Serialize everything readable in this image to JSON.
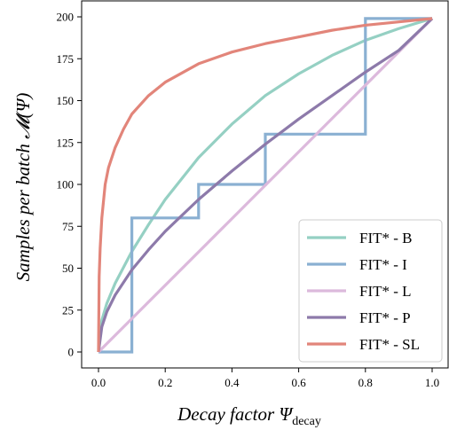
{
  "chart_data": {
    "type": "line",
    "title": "",
    "xlabel": "Decay factor Ψ",
    "xlabel_sub": "decay",
    "ylabel": "Samples per batch 𝓜(Ψ)",
    "xlim": [
      0,
      1
    ],
    "ylim": [
      0,
      200
    ],
    "xticks": [
      "0.0",
      "0.2",
      "0.4",
      "0.6",
      "0.8",
      "1.0"
    ],
    "yticks": [
      "0",
      "25",
      "50",
      "75",
      "100",
      "125",
      "150",
      "175",
      "200"
    ],
    "grid": false,
    "legend_position": "bottom-right",
    "series": [
      {
        "name": "FIT* - B",
        "color": "#95d0c3",
        "x": [
          0,
          0.01,
          0.025,
          0.05,
          0.1,
          0.15,
          0.2,
          0.3,
          0.4,
          0.5,
          0.6,
          0.7,
          0.8,
          0.9,
          1.0
        ],
        "y": [
          0,
          19,
          29,
          41,
          60,
          76,
          91,
          116,
          136,
          153,
          166,
          177,
          186,
          193,
          199
        ]
      },
      {
        "name": "FIT* - I",
        "color": "#8ab0d2",
        "x": [
          0,
          0.1,
          0.1,
          0.3,
          0.3,
          0.5,
          0.5,
          0.8,
          0.8,
          1.0
        ],
        "y": [
          0,
          0,
          80,
          80,
          100,
          100,
          130,
          130,
          199,
          199
        ]
      },
      {
        "name": "FIT* - L",
        "color": "#dcb9dc",
        "x": [
          0,
          1
        ],
        "y": [
          0,
          199
        ]
      },
      {
        "name": "FIT* - P",
        "color": "#8d7aaa",
        "x": [
          0,
          0.01,
          0.025,
          0.05,
          0.1,
          0.15,
          0.2,
          0.3,
          0.4,
          0.5,
          0.6,
          0.7,
          0.8,
          0.9,
          1.0
        ],
        "y": [
          0,
          15,
          24,
          34,
          49,
          61,
          72,
          91,
          108,
          124,
          139,
          153,
          167,
          180,
          199
        ]
      },
      {
        "name": "FIT* - SL",
        "color": "#e2857a",
        "x": [
          0,
          0.002,
          0.005,
          0.01,
          0.02,
          0.03,
          0.05,
          0.075,
          0.1,
          0.15,
          0.2,
          0.3,
          0.4,
          0.5,
          0.6,
          0.7,
          0.8,
          0.9,
          1.0
        ],
        "y": [
          0,
          45,
          62,
          80,
          100,
          110,
          122,
          133,
          142,
          153,
          161,
          172,
          179,
          184,
          188,
          192,
          195,
          197,
          199
        ]
      }
    ]
  }
}
